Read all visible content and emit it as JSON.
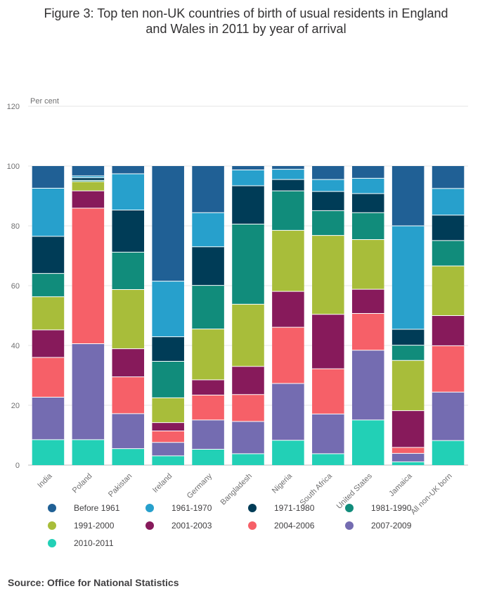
{
  "title_line1": "Figure 3: Top ten non-UK countries of birth of usual residents in England",
  "title_line2": "and Wales in 2011 by year of arrival",
  "source": "Source: Office for National Statistics",
  "chart_data": {
    "type": "bar",
    "stacked": true,
    "title": "Figure 3: Top ten non-UK countries of birth of usual residents in England and Wales in 2011 by year of arrival",
    "ylabel": "Per cent",
    "xlabel": "",
    "ylim": [
      0,
      120
    ],
    "yticks": [
      0,
      20,
      40,
      60,
      80,
      100,
      120
    ],
    "grid": true,
    "legend_position": "bottom",
    "categories": [
      "India",
      "Poland",
      "Pakistan",
      "Ireland",
      "Germany",
      "Bangladesh",
      "Nigeria",
      "South Africa",
      "United States",
      "Jamaica",
      "All non-UK born"
    ],
    "series": [
      {
        "name": "2010-2011",
        "color": "#22d0b6",
        "values": [
          8.5,
          8.5,
          5.5,
          3.1,
          5.3,
          3.8,
          8.3,
          3.8,
          15.1,
          1.1,
          8.2
        ]
      },
      {
        "name": "2007-2009",
        "color": "#746cb1",
        "values": [
          14.2,
          32.1,
          11.7,
          4.5,
          9.8,
          10.8,
          19.0,
          13.3,
          23.3,
          2.8,
          16.2
        ]
      },
      {
        "name": "2004-2006",
        "color": "#f66068",
        "values": [
          13.3,
          45.3,
          12.3,
          3.8,
          8.3,
          9.0,
          18.8,
          15.1,
          12.3,
          2.0,
          15.5
        ]
      },
      {
        "name": "2001-2003",
        "color": "#871a5b",
        "values": [
          9.2,
          5.8,
          9.4,
          2.8,
          5.1,
          9.4,
          12.0,
          18.2,
          8.1,
          12.3,
          10.1
        ]
      },
      {
        "name": "1991-2000",
        "color": "#a8bd3a",
        "values": [
          11.1,
          3.1,
          19.8,
          8.3,
          17.0,
          20.8,
          20.4,
          26.4,
          16.6,
          16.8,
          16.6
        ]
      },
      {
        "name": "1981-1990",
        "color": "#118c7b",
        "values": [
          7.8,
          0.4,
          12.5,
          12.2,
          14.6,
          26.8,
          13.2,
          8.3,
          9.0,
          5.1,
          8.5
        ]
      },
      {
        "name": "1971-1980",
        "color": "#003c57",
        "values": [
          12.4,
          0.9,
          14.1,
          8.2,
          12.9,
          12.8,
          3.8,
          6.4,
          6.4,
          5.3,
          8.5
        ]
      },
      {
        "name": "1961-1970",
        "color": "#27a0cc",
        "values": [
          16.1,
          0.6,
          12.1,
          18.6,
          11.4,
          5.3,
          3.4,
          4.0,
          5.1,
          34.6,
          8.9
        ]
      },
      {
        "name": "Before 1961",
        "color": "#206095",
        "values": [
          7.4,
          3.3,
          2.6,
          38.5,
          15.6,
          1.3,
          1.1,
          4.5,
          4.1,
          20.0,
          7.5
        ]
      }
    ],
    "legend_order": [
      "Before 1961",
      "1961-1970",
      "1971-1980",
      "1981-1990",
      "1991-2000",
      "2001-2003",
      "2004-2006",
      "2007-2009",
      "2010-2011"
    ]
  }
}
